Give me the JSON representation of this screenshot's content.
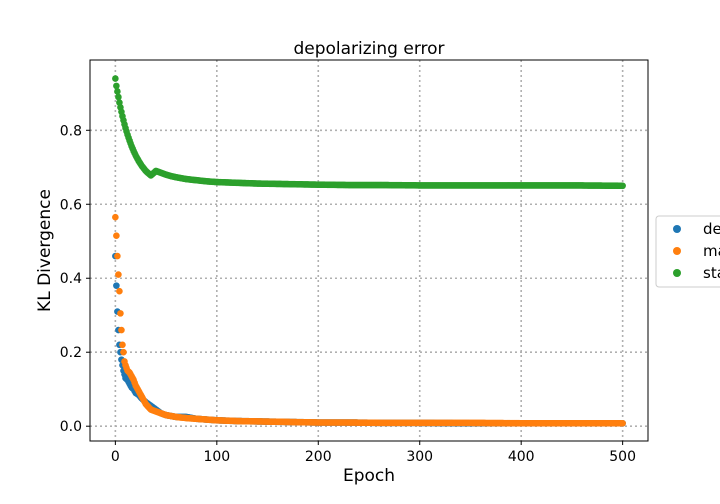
{
  "chart_data": {
    "type": "scatter",
    "title": "depolarizing error",
    "xlabel": "Epoch",
    "ylabel": "KL Divergence",
    "xlim": [
      -25,
      525
    ],
    "ylim": [
      -0.04,
      0.99
    ],
    "xticks": [
      0,
      100,
      200,
      300,
      400,
      500
    ],
    "yticks": [
      0.0,
      0.2,
      0.4,
      0.6,
      0.8
    ],
    "ytick_labels": [
      "0.0",
      "0.2",
      "0.4",
      "0.6",
      "0.8"
    ],
    "grid": true,
    "grid_style": "dotted",
    "legend_placement": "center-right",
    "legend_entries_visible": [
      "de",
      "ma",
      "sta"
    ],
    "colors": {
      "series_1": "#1f77b4",
      "series_2": "#ff7f0e",
      "series_3": "#2ca02c",
      "grid": "#b0b0b0"
    },
    "series": [
      {
        "color": "#2ca02c",
        "x": [
          0,
          1,
          2,
          3,
          4,
          5,
          6,
          7,
          8,
          9,
          10,
          12,
          14,
          16,
          18,
          20,
          23,
          26,
          30,
          35,
          40,
          45,
          50,
          55,
          60,
          70,
          80,
          90,
          100,
          120,
          140,
          160,
          180,
          200,
          230,
          260,
          300,
          350,
          400,
          450,
          500
        ],
        "values": [
          0.94,
          0.92,
          0.905,
          0.89,
          0.875,
          0.862,
          0.85,
          0.838,
          0.827,
          0.816,
          0.806,
          0.788,
          0.772,
          0.757,
          0.744,
          0.732,
          0.717,
          0.704,
          0.69,
          0.678,
          0.69,
          0.685,
          0.68,
          0.676,
          0.673,
          0.668,
          0.665,
          0.662,
          0.66,
          0.658,
          0.656,
          0.655,
          0.654,
          0.653,
          0.652,
          0.652,
          0.651,
          0.651,
          0.651,
          0.651,
          0.65
        ]
      },
      {
        "color": "#1f77b4",
        "x": [
          0,
          1,
          2,
          3,
          4,
          5,
          6,
          7,
          8,
          9,
          10,
          12,
          14,
          16,
          18,
          20,
          23,
          26,
          30,
          35,
          40,
          45,
          50,
          60,
          70,
          80,
          90,
          100,
          120,
          140,
          160,
          180,
          200,
          230,
          260,
          300,
          350,
          400,
          450,
          500
        ],
        "values": [
          0.46,
          0.38,
          0.31,
          0.26,
          0.22,
          0.2,
          0.18,
          0.165,
          0.15,
          0.14,
          0.13,
          0.125,
          0.115,
          0.105,
          0.1,
          0.09,
          0.085,
          0.075,
          0.065,
          0.055,
          0.045,
          0.035,
          0.03,
          0.025,
          0.025,
          0.02,
          0.018,
          0.016,
          0.014,
          0.013,
          0.012,
          0.011,
          0.01,
          0.01,
          0.009,
          0.009,
          0.008,
          0.008,
          0.008,
          0.008
        ]
      },
      {
        "color": "#ff7f0e",
        "x": [
          0,
          1,
          2,
          3,
          4,
          5,
          6,
          7,
          8,
          9,
          10,
          12,
          14,
          16,
          18,
          20,
          23,
          26,
          30,
          35,
          40,
          45,
          50,
          60,
          70,
          80,
          90,
          100,
          120,
          140,
          160,
          180,
          200,
          230,
          260,
          300,
          350,
          400,
          450,
          500
        ],
        "values": [
          0.565,
          0.515,
          0.46,
          0.41,
          0.365,
          0.305,
          0.26,
          0.22,
          0.2,
          0.175,
          0.165,
          0.15,
          0.145,
          0.135,
          0.125,
          0.11,
          0.095,
          0.08,
          0.06,
          0.045,
          0.04,
          0.035,
          0.03,
          0.025,
          0.022,
          0.02,
          0.018,
          0.016,
          0.014,
          0.013,
          0.012,
          0.011,
          0.01,
          0.01,
          0.009,
          0.009,
          0.009,
          0.008,
          0.008,
          0.008
        ]
      }
    ]
  }
}
